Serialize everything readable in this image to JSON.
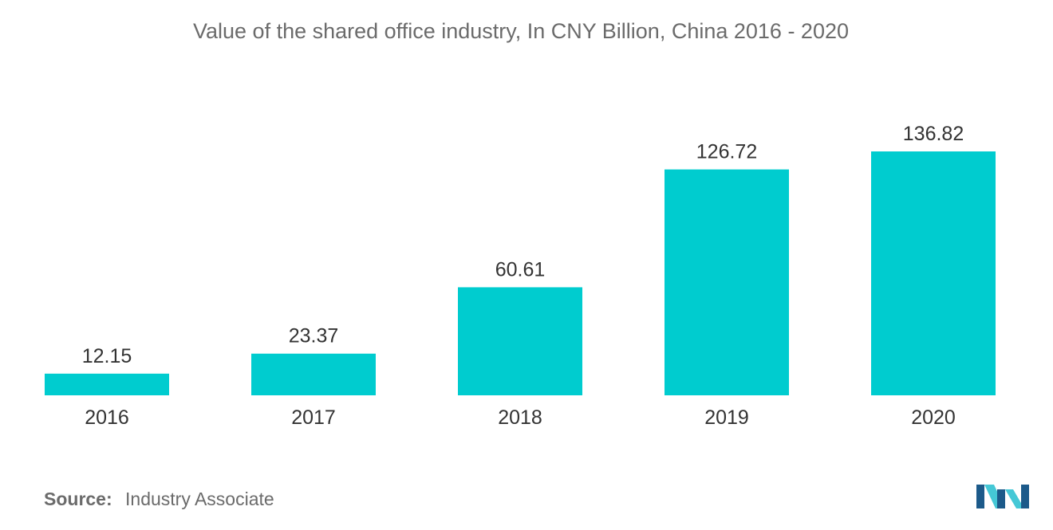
{
  "chart_data": {
    "type": "bar",
    "title": "Value of the shared office industry, In CNY Billion, China 2016 - 2020",
    "categories": [
      "2016",
      "2017",
      "2018",
      "2019",
      "2020"
    ],
    "values": [
      12.15,
      23.37,
      60.61,
      126.72,
      136.82
    ],
    "data_labels": [
      "12.15",
      "23.37",
      "60.61",
      "126.72",
      "136.82"
    ],
    "xlabel": "",
    "ylabel": "",
    "ylim": [
      0,
      136.82
    ],
    "grid": false,
    "legend": "none",
    "bar_color": "#00cccf"
  },
  "source": {
    "label": "Source:",
    "text": "Industry Associate"
  },
  "colors": {
    "title": "#6b6b6b",
    "labels": "#333333",
    "logo_dark": "#1c5a8a",
    "logo_light": "#45c8d6"
  },
  "logo": {
    "icon": "mordor-intelligence-logo-icon"
  }
}
